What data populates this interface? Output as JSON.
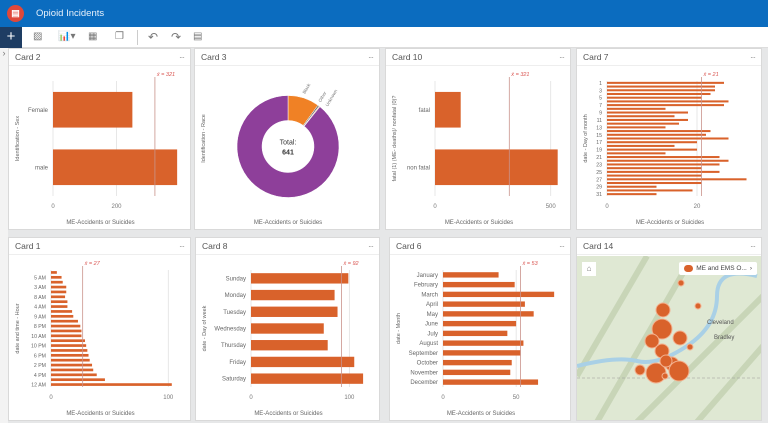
{
  "app": {
    "title": "Opioid Incidents",
    "logo_icon": "dashboard-logo-icon"
  },
  "toolbar": {
    "add": "+",
    "icons": [
      "map-icon",
      "chart-icon",
      "table-icon",
      "copy-icon",
      "undo-icon",
      "redo-icon",
      "grid-layout-icon"
    ]
  },
  "colors": {
    "bar": "#d9622b",
    "header": "#0b6cbf",
    "mean": "#d9534f",
    "purple": "#8e3f9a",
    "orange": "#f08125"
  },
  "cards": [
    {
      "id": "c2",
      "title": "Card 2",
      "menu": "···",
      "chart_data": {
        "type": "bar",
        "orientation": "horizontal",
        "ylabel": "Identification - Sex",
        "xlabel": "ME-Accidents or Suicides",
        "categories": [
          "Female",
          "male"
        ],
        "labels": [
          "Female",
          "male"
        ],
        "values": [
          250,
          391
        ],
        "xlim": [
          0,
          400
        ],
        "ticks": [
          0,
          200
        ],
        "mean": 321,
        "mean_label": "x̄ = 321"
      }
    },
    {
      "id": "c3",
      "title": "Card 3",
      "menu": "···",
      "chart_data": {
        "type": "pie",
        "donut": true,
        "ylabel": "Identification - Race",
        "xlabel": "ME-Accidents or Suicides",
        "center_label": "Total:",
        "center_value": "641",
        "slices": [
          {
            "name": "Black",
            "value": 64,
            "color": "#f08125"
          },
          {
            "name": "Other",
            "value": 3,
            "color": "#6d6d6d"
          },
          {
            "name": "Unknown",
            "value": 2,
            "color": "#e8c9a8"
          },
          {
            "name": "",
            "value": 572,
            "color": "#8e3f9a"
          }
        ]
      }
    },
    {
      "id": "c10",
      "title": "Card 10",
      "menu": "···",
      "chart_data": {
        "type": "bar",
        "orientation": "horizontal",
        "ylabel": "fatal (1) (ME- deaths)/ nonfatal (0)?",
        "xlabel": "ME-Accidents or Suicides",
        "categories": [
          "fatal",
          "non fatal"
        ],
        "labels": [
          "fatal",
          "non fatal"
        ],
        "values": [
          111,
          530
        ],
        "xlim": [
          0,
          540
        ],
        "ticks": [
          0,
          500
        ],
        "mean": 321,
        "mean_label": "x̄ = 321"
      }
    },
    {
      "id": "c7",
      "title": "Card 7",
      "menu": "···",
      "chart_data": {
        "type": "bar",
        "orientation": "horizontal",
        "ylabel": "date - Day of month",
        "xlabel": "ME-Accidents or Suicides",
        "categories": [
          "1",
          "2",
          "3",
          "4",
          "5",
          "6",
          "7",
          "8",
          "9",
          "10",
          "11",
          "12",
          "13",
          "14",
          "15",
          "16",
          "17",
          "18",
          "19",
          "20",
          "21",
          "22",
          "23",
          "24",
          "25",
          "26",
          "27",
          "28",
          "29",
          "30",
          "31"
        ],
        "labels": [
          "1",
          "",
          "3",
          "",
          "5",
          "",
          "7",
          "",
          "9",
          "",
          "11",
          "",
          "13",
          "",
          "15",
          "",
          "17",
          "",
          "19",
          "",
          "21",
          "",
          "23",
          "",
          "25",
          "",
          "27",
          "",
          "29",
          "",
          "31"
        ],
        "values": [
          26,
          24,
          24,
          23,
          21,
          27,
          26,
          13,
          18,
          15,
          18,
          16,
          13,
          23,
          22,
          27,
          20,
          15,
          20,
          13,
          25,
          27,
          25,
          21,
          25,
          21,
          31,
          21,
          11,
          19,
          11
        ],
        "xlim": [
          0,
          32
        ],
        "ticks": [
          0,
          20
        ],
        "mean": 21,
        "mean_label": "x̄ = 21"
      }
    },
    {
      "id": "c1",
      "title": "Card 1",
      "menu": "···",
      "chart_data": {
        "type": "bar",
        "orientation": "horizontal",
        "ylabel": "date and time - Hour",
        "xlabel": "ME-Accidents or Suicides",
        "labels": [
          "",
          "5 AM",
          "",
          "3 AM",
          "",
          "8 AM",
          "",
          "4 AM",
          "",
          "9 AM",
          "",
          "8 PM",
          "",
          "10 AM",
          "",
          "10 PM",
          "",
          "6 PM",
          "",
          "2 PM",
          "",
          "4 PM",
          "",
          "12 AM"
        ],
        "values": [
          5,
          9,
          10,
          13,
          13,
          12,
          14,
          14,
          18,
          19,
          23,
          25,
          26,
          26,
          29,
          30,
          31,
          32,
          33,
          35,
          36,
          39,
          46,
          103
        ],
        "xlim": [
          0,
          110
        ],
        "ticks": [
          0,
          100
        ],
        "mean": 27,
        "mean_label": "x̄ = 27"
      }
    },
    {
      "id": "c8",
      "title": "Card 8",
      "menu": "···",
      "chart_data": {
        "type": "bar",
        "orientation": "horizontal",
        "ylabel": "date - Day of week",
        "xlabel": "ME-Accidents or Suicides",
        "categories": [
          "Sunday",
          "Monday",
          "Tuesday",
          "Wednesday",
          "Thursday",
          "Friday",
          "Saturday"
        ],
        "labels": [
          "Sunday",
          "Monday",
          "Tuesday",
          "Wednesday",
          "Thursday",
          "Friday",
          "Saturday"
        ],
        "values": [
          99,
          85,
          88,
          74,
          78,
          105,
          114
        ],
        "xlim": [
          0,
          120
        ],
        "ticks": [
          0,
          100
        ],
        "mean": 92,
        "mean_label": "x̄ = 92"
      }
    },
    {
      "id": "c6",
      "title": "Card 6",
      "menu": "···",
      "chart_data": {
        "type": "bar",
        "orientation": "horizontal",
        "ylabel": "date - Month",
        "xlabel": "ME-Accidents or Suicides",
        "categories": [
          "January",
          "February",
          "March",
          "April",
          "May",
          "June",
          "July",
          "August",
          "September",
          "October",
          "November",
          "December"
        ],
        "labels": [
          "January",
          "February",
          "March",
          "April",
          "May",
          "June",
          "July",
          "August",
          "September",
          "October",
          "November",
          "December"
        ],
        "values": [
          38,
          49,
          76,
          56,
          62,
          50,
          44,
          55,
          53,
          47,
          46,
          65
        ],
        "xlim": [
          0,
          80
        ],
        "ticks": [
          0,
          50
        ],
        "mean": 53,
        "mean_label": "x̄ = 53"
      }
    },
    {
      "id": "c14",
      "title": "Card 14",
      "menu": "···",
      "map": {
        "legend": "ME and EMS O...",
        "legend_chevron": "›",
        "home_icon": "home-icon",
        "place_labels": [
          "Cleveland",
          "Bradley"
        ]
      }
    }
  ]
}
